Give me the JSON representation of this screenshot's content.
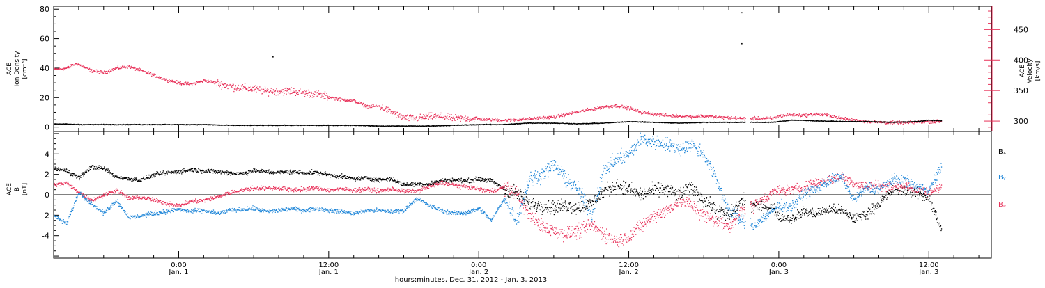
{
  "figure": {
    "xlabel": "hours:minutes, Dec. 31, 2012 - Jan.  3, 2013",
    "xticks": [
      {
        "t": 10,
        "time": "0:00",
        "date": "Jan. 1"
      },
      {
        "t": 22,
        "time": "12:00",
        "date": "Jan. 1"
      },
      {
        "t": 34,
        "time": "0:00",
        "date": "Jan. 2"
      },
      {
        "t": 46,
        "time": "12:00",
        "date": "Jan. 2"
      },
      {
        "t": 58,
        "time": "0:00",
        "date": "Jan. 3"
      },
      {
        "t": 70,
        "time": "12:00",
        "date": "Jan. 3"
      }
    ],
    "colors": {
      "black": "#000000",
      "red": "#e8325a",
      "blue": "#1f86d8"
    }
  },
  "chart_data": [
    {
      "type": "scatter",
      "panel": "top",
      "x_unit": "hours since Dec. 31, 2012 14:00",
      "xlim": [
        0,
        75
      ],
      "ylabel": [
        "ACE",
        "Ion Density",
        "[cm⁻³]"
      ],
      "ylim": [
        -3,
        82
      ],
      "yticks": [
        0,
        20,
        40,
        60,
        80
      ],
      "ylabel_right": [
        "ACE",
        "Velocity",
        "[km/s]"
      ],
      "ylim_right": [
        283,
        488
      ],
      "yticks_right": [
        300,
        350,
        400,
        450
      ],
      "series": [
        {
          "axis": "left",
          "color": "#000000",
          "x": [
            0,
            2,
            4,
            6,
            8,
            10,
            12,
            14,
            16,
            18,
            20,
            22,
            24,
            26,
            28,
            30,
            32,
            34,
            36,
            38,
            40,
            42,
            44,
            46,
            48,
            50,
            52,
            54,
            56,
            57.5,
            59,
            61,
            63,
            65,
            67,
            69,
            70,
            71
          ],
          "y": [
            2.5,
            2,
            2,
            2,
            2,
            2,
            2,
            1.5,
            1.5,
            1.5,
            1.5,
            1.5,
            1.5,
            1,
            1,
            1,
            1.5,
            2,
            2,
            3,
            3,
            2.5,
            3,
            4,
            3.5,
            3,
            3.5,
            3.5,
            3.5,
            3.5,
            5,
            4.5,
            4,
            4,
            3.5,
            4,
            5,
            4.5
          ]
        },
        {
          "axis": "right",
          "color": "#e8325a",
          "x": [
            0,
            1,
            1.8,
            3,
            4,
            5,
            6,
            7,
            8,
            9,
            10,
            11,
            12,
            13,
            14,
            15,
            16,
            17,
            18,
            19,
            20,
            21,
            22,
            23,
            24,
            25,
            26,
            27,
            28,
            29,
            30,
            31,
            32,
            33,
            34,
            35,
            36,
            37,
            38,
            39,
            40,
            41,
            42,
            43,
            44,
            45,
            46,
            47,
            48,
            49,
            50,
            51,
            52,
            53,
            54,
            55,
            56,
            57.5,
            58,
            59,
            60,
            61,
            62,
            63,
            64,
            65,
            66,
            67,
            68,
            69,
            70,
            71
          ],
          "y": [
            385,
            387,
            395,
            383,
            380,
            387,
            390,
            383,
            376,
            368,
            363,
            361,
            367,
            363,
            358,
            355,
            353,
            350,
            350,
            350,
            347,
            345,
            340,
            336,
            334,
            325,
            325,
            315,
            306,
            305,
            308,
            308,
            305,
            305,
            304,
            303,
            302,
            303,
            304,
            306,
            307,
            312,
            316,
            320,
            324,
            326,
            322,
            315,
            312,
            310,
            309,
            308,
            309,
            307,
            306,
            305,
            305,
            305,
            309,
            311,
            310,
            312,
            310,
            305,
            302,
            300,
            299,
            298,
            298,
            299,
            300,
            300
          ]
        }
      ],
      "outliers": [
        {
          "x": 17.5,
          "y": 48,
          "axis": "left"
        },
        {
          "x": 55,
          "y": 78,
          "axis": "left"
        },
        {
          "x": 55,
          "y": 57,
          "axis": "left"
        }
      ],
      "gap": [
        55.3,
        55.7
      ]
    },
    {
      "type": "scatter",
      "panel": "bottom",
      "x_unit": "hours since Dec. 31, 2012 14:00",
      "xlim": [
        0,
        75
      ],
      "ylabel": [
        "ACE",
        "B",
        "[nT]"
      ],
      "ylim": [
        -6.2,
        6.2
      ],
      "yticks": [
        -4,
        -2,
        0,
        2,
        4
      ],
      "series": [
        {
          "name": "Bₓ",
          "color": "#000000",
          "x": [
            0,
            1,
            2,
            3,
            4,
            5,
            6,
            7,
            8,
            9,
            10,
            11,
            12,
            13,
            14,
            15,
            16,
            17,
            18,
            19,
            20,
            21,
            22,
            23,
            24,
            25,
            26,
            27,
            28,
            29,
            30,
            31,
            32,
            33,
            34,
            35,
            36,
            37,
            38,
            39,
            40,
            41,
            42,
            43,
            44,
            45,
            46,
            47,
            48,
            49,
            50,
            51,
            52,
            53,
            54,
            55,
            56,
            57.5,
            58,
            59,
            60,
            61,
            62,
            63,
            64,
            65,
            66,
            67,
            68,
            69,
            70,
            71
          ],
          "y": [
            2.6,
            2.4,
            1.7,
            2.8,
            2.6,
            1.8,
            1.6,
            1.5,
            2.0,
            2.2,
            2.3,
            2.5,
            2.4,
            2.3,
            2.2,
            2.1,
            2.4,
            2.3,
            2.2,
            2.3,
            2.2,
            2.2,
            2.0,
            1.8,
            1.6,
            1.7,
            1.5,
            1.6,
            1.0,
            1.1,
            1.1,
            1.4,
            1.5,
            1.4,
            1.6,
            1.4,
            0.6,
            0.2,
            -0.8,
            -1.0,
            -1.2,
            -1.0,
            -1.2,
            -0.8,
            0.4,
            1.0,
            0.6,
            0.0,
            0.5,
            0.6,
            0.0,
            0.8,
            -0.5,
            -1.5,
            -2.0,
            -0.5,
            -1.0,
            -1.2,
            -2.1,
            -2.3,
            -1.6,
            -1.8,
            -1.4,
            -1.5,
            -2.3,
            -1.8,
            -0.8,
            0.4,
            0.5,
            0.2,
            -0.3,
            -3.5
          ]
        },
        {
          "name": "Bᵧ",
          "color": "#1f86d8",
          "x": [
            0,
            1,
            2,
            3,
            4,
            5,
            6,
            7,
            8,
            9,
            10,
            11,
            12,
            13,
            14,
            15,
            16,
            17,
            18,
            19,
            20,
            21,
            22,
            23,
            24,
            25,
            26,
            27,
            28,
            29,
            30,
            31,
            32,
            33,
            34,
            35,
            36,
            37,
            38,
            39,
            40,
            41,
            42,
            43,
            44,
            45,
            46,
            47,
            48,
            49,
            50,
            51,
            52,
            53,
            54,
            55,
            56,
            57.5,
            58,
            59,
            60,
            61,
            62,
            63,
            64,
            65,
            66,
            67,
            68,
            69,
            70,
            71
          ],
          "y": [
            -2.0,
            -2.8,
            0.3,
            -0.8,
            -1.8,
            -0.5,
            -2.2,
            -2.0,
            -1.8,
            -1.6,
            -1.4,
            -1.6,
            -1.5,
            -1.8,
            -1.5,
            -1.4,
            -1.3,
            -1.6,
            -1.5,
            -1.3,
            -1.5,
            -1.3,
            -1.5,
            -1.6,
            -1.8,
            -1.5,
            -1.5,
            -1.6,
            -1.5,
            -0.3,
            -1.0,
            -1.5,
            -1.8,
            -1.7,
            -1.3,
            -2.5,
            -0.3,
            -2.5,
            1.5,
            2.0,
            3.0,
            1.5,
            0.5,
            -2.0,
            2.5,
            3.5,
            4.0,
            5.5,
            5.2,
            5.0,
            4.5,
            5.0,
            4.0,
            1.5,
            -1.5,
            -2.5,
            -3.0,
            -1.5,
            -1.0,
            -1.2,
            0.2,
            0.6,
            1.5,
            1.7,
            -0.5,
            0.8,
            0.6,
            1.5,
            1.5,
            0.8,
            0.5,
            2.8
          ]
        },
        {
          "name": "Bₔ",
          "color": "#e8325a",
          "x": [
            0,
            1,
            2,
            3,
            4,
            5,
            6,
            7,
            8,
            9,
            10,
            11,
            12,
            13,
            14,
            15,
            16,
            17,
            18,
            19,
            20,
            21,
            22,
            23,
            24,
            25,
            26,
            27,
            28,
            29,
            30,
            31,
            32,
            33,
            34,
            35,
            36,
            37,
            38,
            39,
            40,
            41,
            42,
            43,
            44,
            45,
            46,
            47,
            48,
            49,
            50,
            51,
            52,
            53,
            54,
            55,
            56,
            57.5,
            58,
            59,
            60,
            61,
            62,
            63,
            64,
            65,
            66,
            67,
            68,
            69,
            70,
            71
          ],
          "y": [
            1.0,
            1.2,
            0.3,
            -0.5,
            0.0,
            0.5,
            -0.3,
            -0.2,
            -0.5,
            -0.8,
            -1.0,
            -0.6,
            -0.5,
            -0.2,
            0.2,
            0.5,
            0.7,
            0.7,
            0.7,
            0.5,
            0.6,
            0.7,
            0.5,
            0.6,
            0.5,
            0.6,
            0.4,
            0.6,
            0.4,
            0.4,
            0.8,
            1.2,
            1.0,
            0.8,
            0.6,
            0.4,
            0.8,
            0.3,
            -2.0,
            -3.0,
            -3.5,
            -3.8,
            -3.5,
            -3.0,
            -3.8,
            -4.5,
            -4.0,
            -3.0,
            -2.0,
            -1.5,
            -0.5,
            -1.0,
            -2.0,
            -2.5,
            -3.0,
            -1.5,
            -1.0,
            0.3,
            0.4,
            0.5,
            0.8,
            1.2,
            1.5,
            1.8,
            1.2,
            0.8,
            1.0,
            0.8,
            1.0,
            0.5,
            0.2,
            1.0
          ]
        }
      ],
      "gap": [
        55.3,
        55.7
      ]
    }
  ]
}
